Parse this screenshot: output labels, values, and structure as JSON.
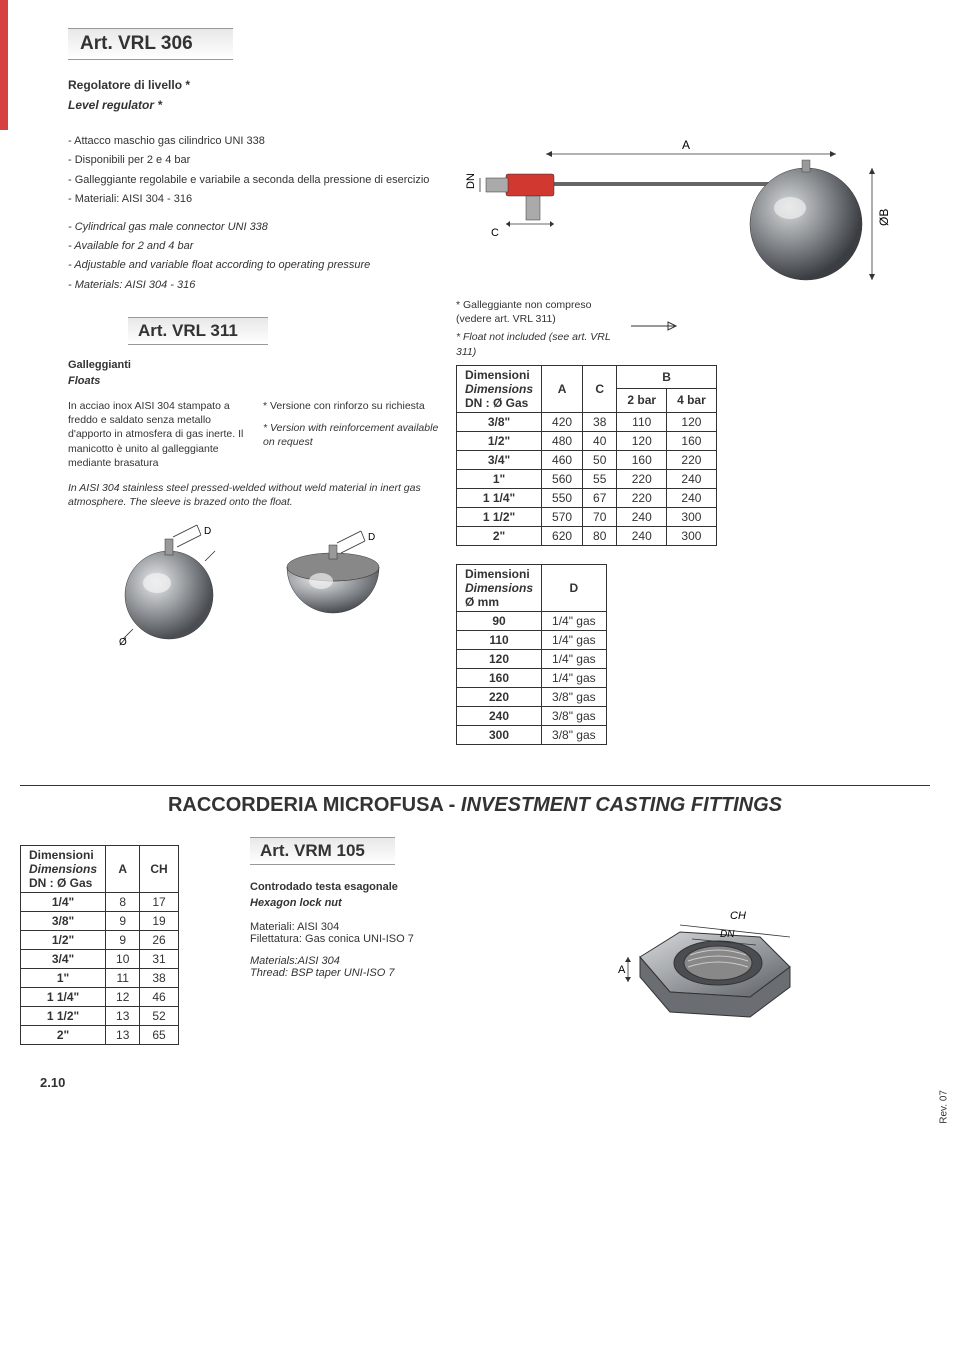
{
  "vrl306": {
    "title": "Art. VRL 306",
    "subtitle_it": "Regolatore di livello *",
    "subtitle_en": "Level regulator *",
    "bullets_it": [
      "- Attacco maschio gas cilindrico UNI 338",
      "- Disponibili per 2 e 4 bar",
      "- Galleggiante regolabile e variabile a seconda della pressione di esercizio",
      "- Materiali: AISI 304 - 316"
    ],
    "bullets_en": [
      "- Cylindrical gas male connector UNI 338",
      "- Available for 2 and 4 bar",
      "- Adjustable and variable float according to operating pressure",
      "- Materials: AISI 304 - 316"
    ],
    "note_it": "* Galleggiante non compreso (vedere art. VRL 311)",
    "note_en": "* Float not included (see art. VRL 311)",
    "dim_header": "Dimensioni",
    "dim_header_en": "Dimensions",
    "dim_sub": "DN : Ø Gas",
    "col_a": "A",
    "col_c": "C",
    "col_b": "B",
    "col_2bar": "2 bar",
    "col_4bar": "4 bar",
    "rows": [
      {
        "dn": "3/8\"",
        "a": "420",
        "c": "38",
        "b2": "110",
        "b4": "120"
      },
      {
        "dn": "1/2\"",
        "a": "480",
        "c": "40",
        "b2": "120",
        "b4": "160"
      },
      {
        "dn": "3/4\"",
        "a": "460",
        "c": "50",
        "b2": "160",
        "b4": "220"
      },
      {
        "dn": "1\"",
        "a": "560",
        "c": "55",
        "b2": "220",
        "b4": "240"
      },
      {
        "dn": "1 1/4\"",
        "a": "550",
        "c": "67",
        "b2": "220",
        "b4": "240"
      },
      {
        "dn": "1 1/2\"",
        "a": "570",
        "c": "70",
        "b2": "240",
        "b4": "300"
      },
      {
        "dn": "2\"",
        "a": "620",
        "c": "80",
        "b2": "240",
        "b4": "300"
      }
    ]
  },
  "vrl311": {
    "title": "Art. VRL 311",
    "sub_it": "Galleggianti",
    "sub_en": "Floats",
    "desc_it": "In acciao inox AISI 304 stampato a freddo e saldato senza metallo d'apporto in atmosfera di gas inerte. Il manicotto è unito al galleggiante mediante brasatura",
    "note_it": "* Versione con rinforzo su richiesta",
    "note_en": "* Version with reinforcement available on request",
    "desc_en": "In AISI 304 stainless steel pressed-welded without weld material in inert gas atmosphere. The sleeve is brazed onto the float.",
    "dim_header": "Dimensioni",
    "dim_header_en": "Dimensions",
    "dim_sub": "Ø mm",
    "col_d": "D",
    "rows": [
      {
        "mm": "90",
        "d": "1/4\" gas"
      },
      {
        "mm": "110",
        "d": "1/4\" gas"
      },
      {
        "mm": "120",
        "d": "1/4\" gas"
      },
      {
        "mm": "160",
        "d": "1/4\" gas"
      },
      {
        "mm": "220",
        "d": "3/8\" gas"
      },
      {
        "mm": "240",
        "d": "3/8\" gas"
      },
      {
        "mm": "300",
        "d": "3/8\" gas"
      }
    ]
  },
  "section2": {
    "title_it": "RACCORDERIA MICROFUSA - ",
    "title_en": "INVESTMENT CASTING FITTINGS"
  },
  "vrm105": {
    "title": "Art. VRM 105",
    "sub_it": "Controdado testa esagonale",
    "sub_en": "Hexagon lock nut",
    "mat_it1": "Materiali: AISI 304",
    "mat_it2": "Filettatura: Gas conica UNI-ISO 7",
    "mat_en1": "Materials:AISI 304",
    "mat_en2": "Thread: BSP taper UNI-ISO 7",
    "dim_header": "Dimensioni",
    "dim_header_en": "Dimensions",
    "dim_sub": "DN : Ø Gas",
    "col_a": "A",
    "col_ch": "CH",
    "rows": [
      {
        "dn": "1/4\"",
        "a": "8",
        "ch": "17"
      },
      {
        "dn": "3/8\"",
        "a": "9",
        "ch": "19"
      },
      {
        "dn": "1/2\"",
        "a": "9",
        "ch": "26"
      },
      {
        "dn": "3/4\"",
        "a": "10",
        "ch": "31"
      },
      {
        "dn": "1\"",
        "a": "11",
        "ch": "38"
      },
      {
        "dn": "1 1/4\"",
        "a": "12",
        "ch": "46"
      },
      {
        "dn": "1 1/2\"",
        "a": "13",
        "ch": "52"
      },
      {
        "dn": "2\"",
        "a": "13",
        "ch": "65"
      }
    ]
  },
  "footer": "2.10",
  "rev": "Rev. 07",
  "colors": {
    "red": "#d64040",
    "gray_light": "#e8e8e8",
    "metal1": "#a0a4a8",
    "metal2": "#6a6e72",
    "red_valve": "#d03830"
  },
  "diagram_labels": {
    "A": "A",
    "DN": "DN",
    "C": "C",
    "OB": "ØB",
    "D": "D",
    "O": "Ø",
    "CH": "CH"
  }
}
